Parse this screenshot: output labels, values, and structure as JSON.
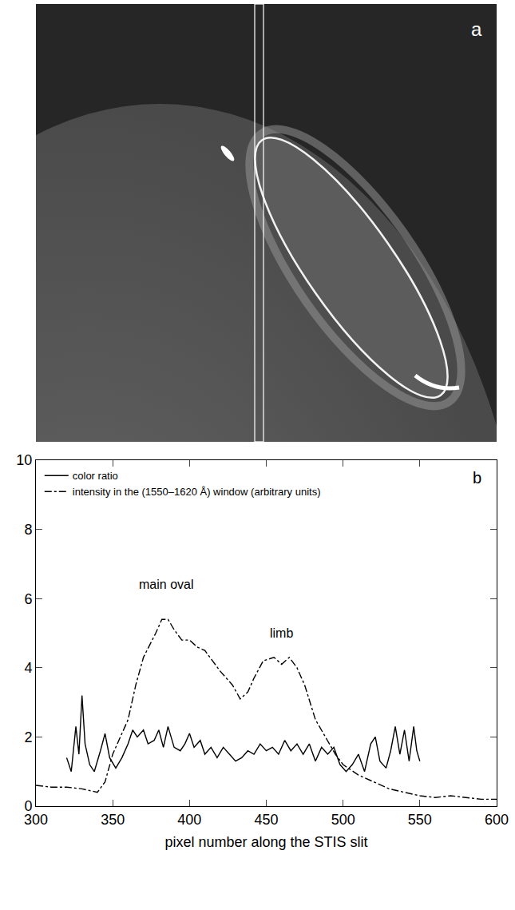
{
  "image_panel": {
    "label": "a"
  },
  "chart_data": {
    "type": "line",
    "panel_label": "b",
    "x_label": "pixel number along the STIS slit",
    "xlim": [
      300,
      600
    ],
    "xticks": [
      300,
      350,
      400,
      450,
      500,
      550,
      600
    ],
    "ylim": [
      0,
      10
    ],
    "yticks": [
      0,
      2,
      4,
      6,
      8,
      10
    ],
    "grid": false,
    "legend": "top-left",
    "series": [
      {
        "name": "color ratio",
        "color": "#000000",
        "line_style": "solid",
        "x": [
          320,
          323,
          326,
          328,
          330,
          332,
          335,
          338,
          342,
          345,
          348,
          352,
          356,
          360,
          363,
          366,
          370,
          373,
          377,
          380,
          383,
          386,
          390,
          394,
          397,
          400,
          403,
          407,
          410,
          414,
          418,
          422,
          426,
          430,
          434,
          438,
          442,
          446,
          450,
          454,
          458,
          462,
          466,
          470,
          474,
          478,
          482,
          486,
          490,
          494,
          498,
          502,
          506,
          510,
          514,
          518,
          521,
          524,
          528,
          531,
          534,
          537,
          540,
          543,
          546,
          548,
          550
        ],
        "values": [
          1.4,
          1.0,
          2.3,
          1.5,
          3.2,
          1.8,
          1.2,
          1.0,
          1.6,
          2.1,
          1.4,
          1.1,
          1.4,
          1.8,
          2.2,
          2.0,
          2.2,
          1.8,
          1.9,
          2.2,
          1.7,
          2.3,
          1.7,
          1.6,
          1.8,
          2.1,
          1.7,
          1.9,
          1.5,
          1.7,
          1.4,
          1.7,
          1.5,
          1.3,
          1.4,
          1.6,
          1.5,
          1.8,
          1.6,
          1.7,
          1.5,
          1.9,
          1.6,
          1.8,
          1.5,
          1.8,
          1.3,
          1.7,
          1.5,
          1.7,
          1.2,
          1.0,
          1.2,
          1.5,
          1.0,
          1.8,
          2.0,
          1.3,
          1.1,
          1.6,
          2.3,
          1.5,
          2.2,
          1.3,
          2.3,
          1.6,
          1.3
        ]
      },
      {
        "name": "intensity in the (1550–1620 Å) window (arbitrary units)",
        "color": "#000000",
        "line_style": "dashdot",
        "x": [
          300,
          310,
          320,
          330,
          340,
          345,
          350,
          355,
          360,
          365,
          370,
          378,
          382,
          386,
          390,
          395,
          400,
          405,
          410,
          415,
          420,
          428,
          433,
          438,
          442,
          448,
          455,
          460,
          465,
          470,
          475,
          482,
          490,
          495,
          500,
          510,
          520,
          530,
          540,
          550,
          560,
          570,
          580,
          590,
          600
        ],
        "values": [
          0.6,
          0.55,
          0.55,
          0.5,
          0.4,
          0.7,
          1.5,
          2.0,
          2.5,
          3.5,
          4.3,
          5.0,
          5.4,
          5.4,
          5.1,
          4.8,
          4.8,
          4.6,
          4.5,
          4.2,
          3.9,
          3.5,
          3.1,
          3.3,
          3.7,
          4.2,
          4.3,
          4.1,
          4.3,
          4.0,
          3.5,
          2.5,
          1.9,
          1.5,
          1.2,
          0.9,
          0.7,
          0.5,
          0.4,
          0.3,
          0.25,
          0.3,
          0.25,
          0.2,
          0.2
        ]
      }
    ],
    "annotations": [
      {
        "text": "main oval",
        "x": 385,
        "y": 6.4
      },
      {
        "text": "limb",
        "x": 460,
        "y": 5.0
      }
    ]
  }
}
